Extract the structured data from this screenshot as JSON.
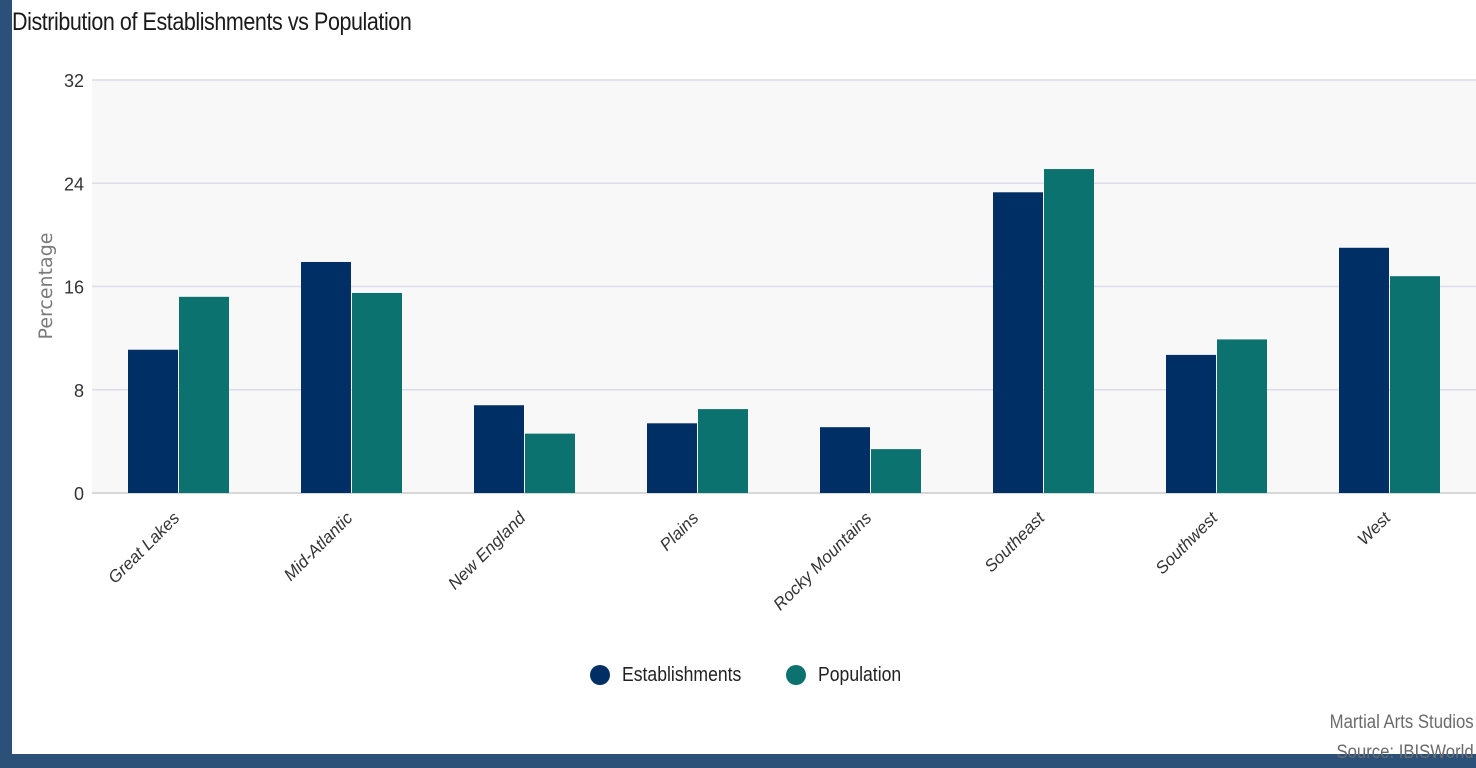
{
  "chart_data": {
    "type": "bar",
    "title": "Distribution of Establishments vs Population",
    "ylabel": "Percentage",
    "xlabel": "",
    "ylim": [
      0,
      32
    ],
    "yticks": [
      0,
      8,
      16,
      24,
      32
    ],
    "grid": true,
    "legend_position": "bottom",
    "categories": [
      "Great Lakes",
      "Mid-Atlantic",
      "New England",
      "Plains",
      "Rocky Mountains",
      "Southeast",
      "Southwest",
      "West"
    ],
    "series": [
      {
        "name": "Establishments",
        "color": "#002f66",
        "values": [
          11.1,
          17.9,
          6.8,
          5.4,
          5.1,
          23.3,
          10.7,
          19.0
        ]
      },
      {
        "name": "Population",
        "color": "#0b7270",
        "values": [
          15.2,
          15.5,
          4.6,
          6.5,
          3.4,
          25.1,
          11.9,
          16.8
        ]
      }
    ]
  },
  "footer": {
    "line1": "Martial Arts Studios",
    "line2": "Source: IBISWorld"
  }
}
